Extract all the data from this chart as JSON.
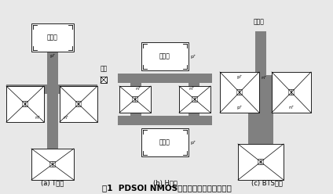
{
  "bg_color": "#e8e8e8",
  "white": "#ffffff",
  "dark_gray": "#808080",
  "title": "图1  PDSOI NMOS晶体管常用的体接触结构",
  "label_body": "体接触",
  "label_source": "源极",
  "label_drain": "漏极",
  "label_gate": "栅极",
  "label_p": "p⁺",
  "label_n": "n⁺",
  "caption_a": "(a) T型槽",
  "caption_b": "(b) H型槽",
  "caption_c": "(c) BTS结构",
  "label_gate_b": "栅极",
  "fontsize_label": 5.5,
  "fontsize_super": 4.5,
  "fontsize_caption": 6.0,
  "fontsize_title": 7.5
}
